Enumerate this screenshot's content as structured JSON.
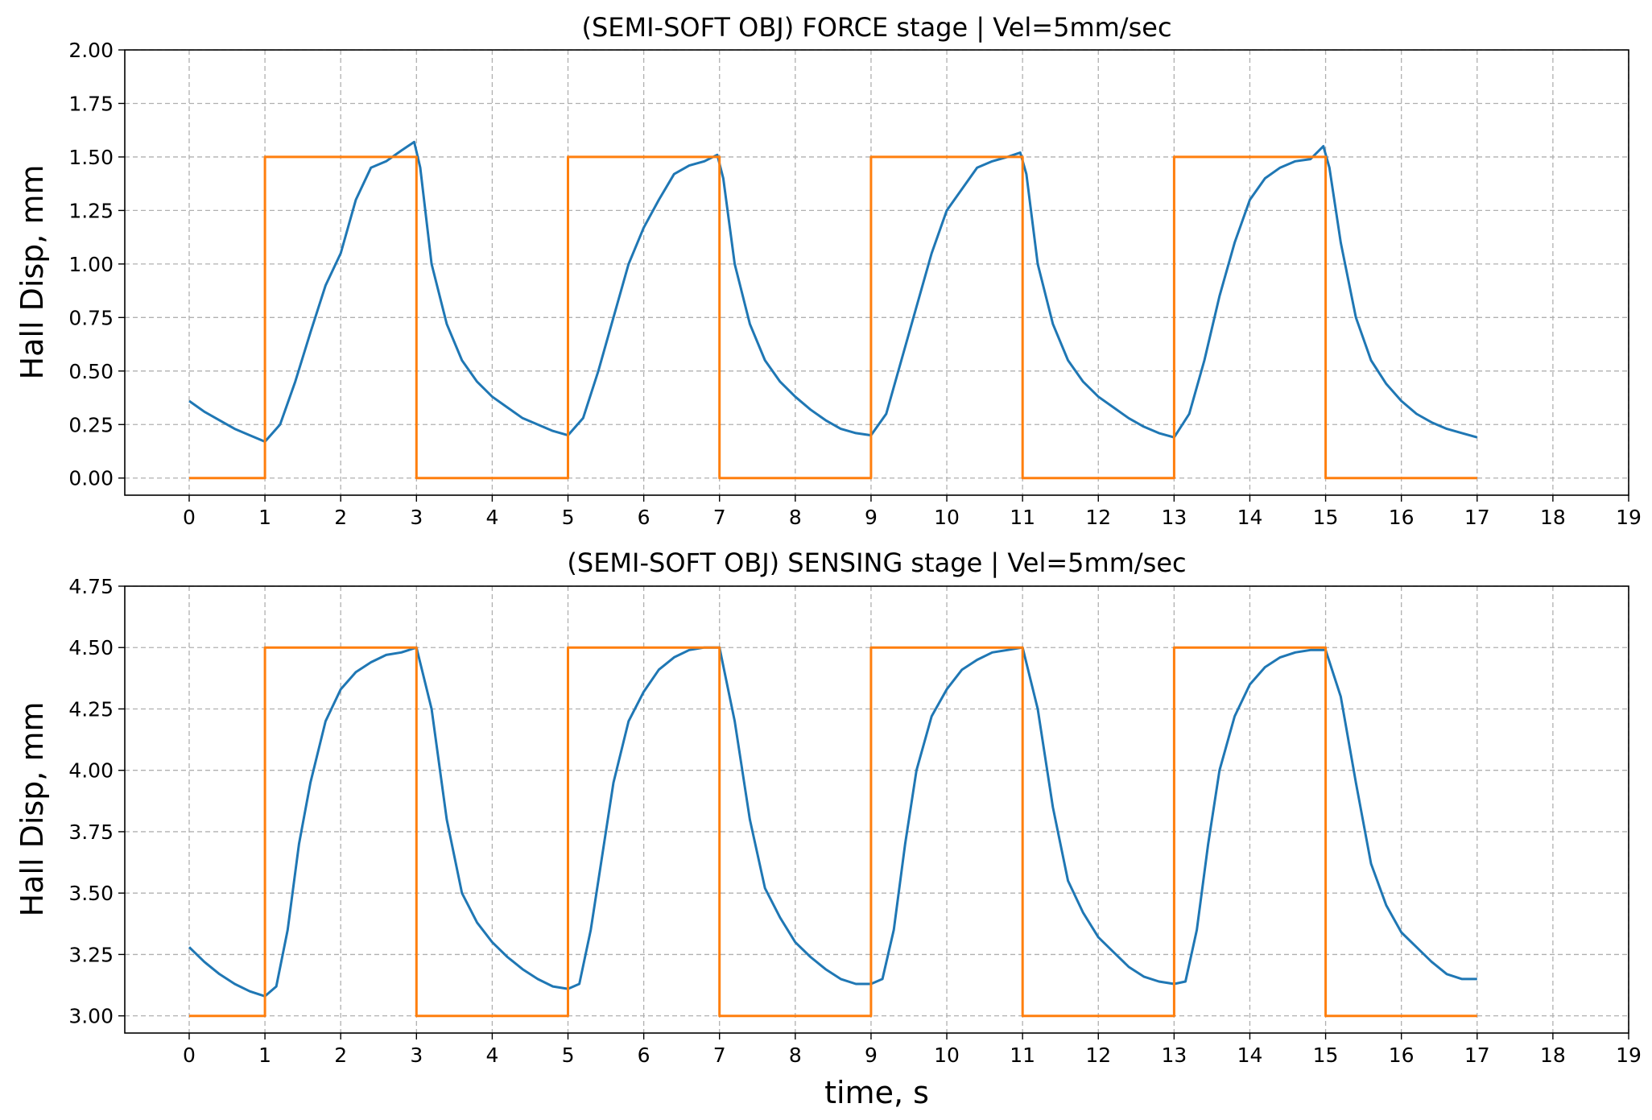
{
  "figure": {
    "xlabel": "time, s",
    "colors": {
      "measured": "#1f77b4",
      "command": "#ff7f0e",
      "grid": "#b0b0b0",
      "frame": "#000000"
    }
  },
  "chart_data": [
    {
      "type": "line",
      "title": "(SEMI-SOFT OBJ) FORCE stage | Vel=5mm/sec",
      "xlabel": "",
      "ylabel": "Hall Disp, mm",
      "xlim": [
        -0.85,
        19.0
      ],
      "ylim": [
        -0.08,
        2.0
      ],
      "xticks": [
        0,
        1,
        2,
        3,
        4,
        5,
        6,
        7,
        8,
        9,
        10,
        11,
        12,
        13,
        14,
        15,
        16,
        17,
        18,
        19
      ],
      "yticks": [
        "0.00",
        "0.25",
        "0.50",
        "0.75",
        "1.00",
        "1.25",
        "1.50",
        "1.75",
        "2.00"
      ],
      "grid": true,
      "series": [
        {
          "color": "#1f77b4",
          "x": [
            0,
            0.2,
            0.4,
            0.6,
            0.8,
            1.0,
            1.2,
            1.4,
            1.6,
            1.8,
            2.0,
            2.2,
            2.4,
            2.6,
            2.8,
            2.97,
            3.05,
            3.2,
            3.4,
            3.6,
            3.8,
            4.0,
            4.2,
            4.4,
            4.6,
            4.8,
            5.0,
            5.2,
            5.4,
            5.6,
            5.8,
            6.0,
            6.2,
            6.4,
            6.6,
            6.8,
            6.97,
            7.05,
            7.2,
            7.4,
            7.6,
            7.8,
            8.0,
            8.2,
            8.4,
            8.6,
            8.8,
            9.0,
            9.2,
            9.4,
            9.6,
            9.8,
            10.0,
            10.2,
            10.4,
            10.6,
            10.8,
            10.97,
            11.05,
            11.2,
            11.4,
            11.6,
            11.8,
            12.0,
            12.2,
            12.4,
            12.6,
            12.8,
            13.0,
            13.2,
            13.4,
            13.6,
            13.8,
            14.0,
            14.2,
            14.4,
            14.6,
            14.8,
            14.97,
            15.05,
            15.2,
            15.4,
            15.6,
            15.8,
            16.0,
            16.2,
            16.4,
            16.6,
            16.8,
            17.0
          ],
          "y": [
            0.36,
            0.31,
            0.27,
            0.23,
            0.2,
            0.17,
            0.25,
            0.45,
            0.68,
            0.9,
            1.05,
            1.3,
            1.45,
            1.48,
            1.53,
            1.57,
            1.45,
            1.0,
            0.72,
            0.55,
            0.45,
            0.38,
            0.33,
            0.28,
            0.25,
            0.22,
            0.2,
            0.28,
            0.5,
            0.75,
            1.0,
            1.17,
            1.3,
            1.42,
            1.46,
            1.48,
            1.51,
            1.4,
            1.0,
            0.72,
            0.55,
            0.45,
            0.38,
            0.32,
            0.27,
            0.23,
            0.21,
            0.2,
            0.3,
            0.55,
            0.8,
            1.05,
            1.25,
            1.35,
            1.45,
            1.48,
            1.5,
            1.52,
            1.42,
            1.0,
            0.72,
            0.55,
            0.45,
            0.38,
            0.33,
            0.28,
            0.24,
            0.21,
            0.19,
            0.3,
            0.55,
            0.85,
            1.1,
            1.3,
            1.4,
            1.45,
            1.48,
            1.49,
            1.55,
            1.45,
            1.1,
            0.75,
            0.55,
            0.44,
            0.36,
            0.3,
            0.26,
            0.23,
            0.21,
            0.19
          ]
        },
        {
          "color": "#ff7f0e",
          "x": [
            0,
            1,
            1,
            3,
            3,
            5,
            5,
            7,
            7,
            9,
            9,
            11,
            11,
            13,
            13,
            15,
            15,
            17
          ],
          "y": [
            0,
            0,
            1.5,
            1.5,
            0,
            0,
            1.5,
            1.5,
            0,
            0,
            1.5,
            1.5,
            0,
            0,
            1.5,
            1.5,
            0,
            0
          ]
        }
      ]
    },
    {
      "type": "line",
      "title": "(SEMI-SOFT OBJ) SENSING stage | Vel=5mm/sec",
      "xlabel": "time, s",
      "ylabel": "Hall Disp, mm",
      "xlim": [
        -0.85,
        19.0
      ],
      "ylim": [
        2.93,
        4.75
      ],
      "xticks": [
        0,
        1,
        2,
        3,
        4,
        5,
        6,
        7,
        8,
        9,
        10,
        11,
        12,
        13,
        14,
        15,
        16,
        17,
        18,
        19
      ],
      "yticks": [
        "3.00",
        "3.25",
        "3.50",
        "3.75",
        "4.00",
        "4.25",
        "4.50",
        "4.75"
      ],
      "grid": true,
      "series": [
        {
          "color": "#1f77b4",
          "x": [
            0,
            0.2,
            0.4,
            0.6,
            0.8,
            1.0,
            1.15,
            1.3,
            1.45,
            1.6,
            1.8,
            2.0,
            2.2,
            2.4,
            2.6,
            2.8,
            3.0,
            3.2,
            3.4,
            3.6,
            3.8,
            4.0,
            4.2,
            4.4,
            4.6,
            4.8,
            5.0,
            5.15,
            5.3,
            5.45,
            5.6,
            5.8,
            6.0,
            6.2,
            6.4,
            6.6,
            6.8,
            7.0,
            7.2,
            7.4,
            7.6,
            7.8,
            8.0,
            8.2,
            8.4,
            8.6,
            8.8,
            9.0,
            9.15,
            9.3,
            9.45,
            9.6,
            9.8,
            10.0,
            10.2,
            10.4,
            10.6,
            10.8,
            11.0,
            11.2,
            11.4,
            11.6,
            11.8,
            12.0,
            12.2,
            12.4,
            12.6,
            12.8,
            13.0,
            13.15,
            13.3,
            13.45,
            13.6,
            13.8,
            14.0,
            14.2,
            14.4,
            14.6,
            14.8,
            15.0,
            15.2,
            15.4,
            15.6,
            15.8,
            16.0,
            16.2,
            16.4,
            16.6,
            16.8,
            17.0
          ],
          "y": [
            3.28,
            3.22,
            3.17,
            3.13,
            3.1,
            3.08,
            3.12,
            3.35,
            3.7,
            3.95,
            4.2,
            4.33,
            4.4,
            4.44,
            4.47,
            4.48,
            4.5,
            4.25,
            3.8,
            3.5,
            3.38,
            3.3,
            3.24,
            3.19,
            3.15,
            3.12,
            3.11,
            3.13,
            3.35,
            3.65,
            3.95,
            4.2,
            4.32,
            4.41,
            4.46,
            4.49,
            4.5,
            4.5,
            4.2,
            3.8,
            3.52,
            3.4,
            3.3,
            3.24,
            3.19,
            3.15,
            3.13,
            3.13,
            3.15,
            3.35,
            3.7,
            4.0,
            4.22,
            4.33,
            4.41,
            4.45,
            4.48,
            4.49,
            4.5,
            4.25,
            3.85,
            3.55,
            3.42,
            3.32,
            3.26,
            3.2,
            3.16,
            3.14,
            3.13,
            3.14,
            3.35,
            3.7,
            4.0,
            4.22,
            4.35,
            4.42,
            4.46,
            4.48,
            4.49,
            4.49,
            4.3,
            3.95,
            3.62,
            3.45,
            3.34,
            3.28,
            3.22,
            3.17,
            3.15,
            3.15
          ]
        },
        {
          "color": "#ff7f0e",
          "x": [
            0,
            1,
            1,
            3,
            3,
            5,
            5,
            7,
            7,
            9,
            9,
            11,
            11,
            13,
            13,
            15,
            15,
            17
          ],
          "y": [
            3,
            3,
            4.5,
            4.5,
            3,
            3,
            4.5,
            4.5,
            3,
            3,
            4.5,
            4.5,
            3,
            3,
            4.5,
            4.5,
            3,
            3
          ]
        }
      ]
    }
  ]
}
